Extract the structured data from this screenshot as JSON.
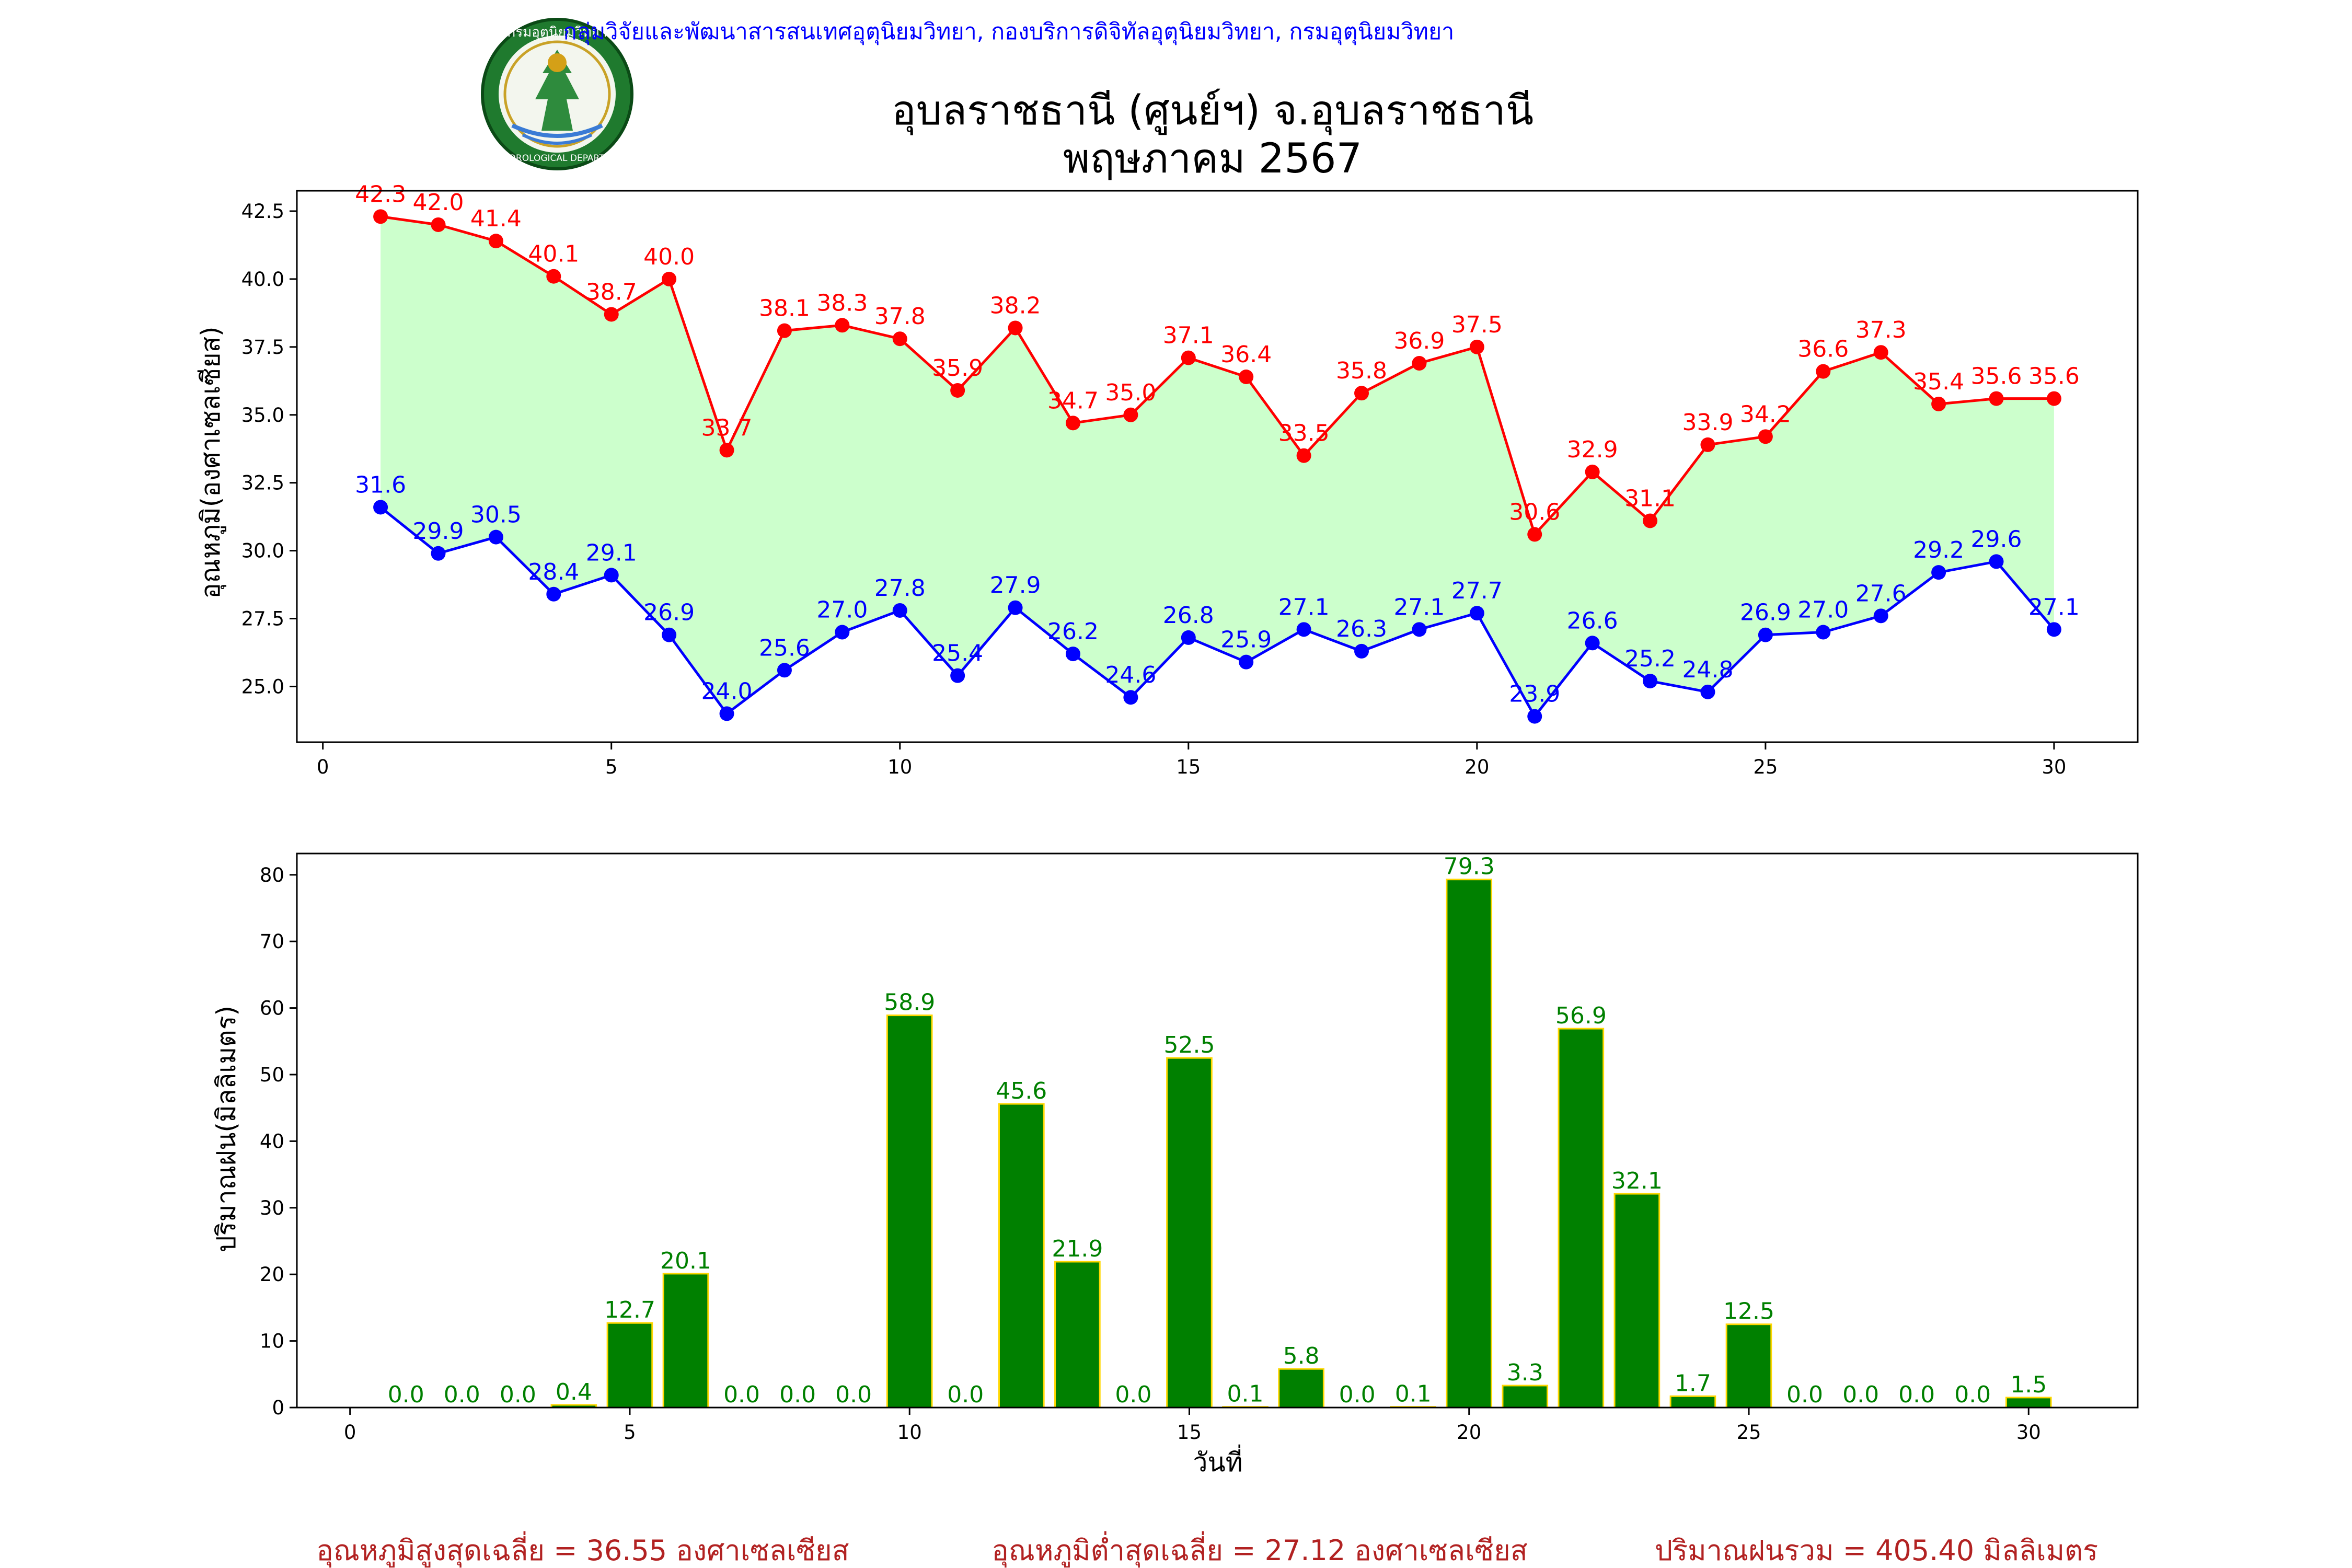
{
  "header": {
    "credit": "กลุ่มวิจัยและพัฒนาสารสนเทศอุตุนิยมวิทยา, กองบริการดิจิทัลอุตุนิยมวิทยา, กรมอุตุนิยมวิทยา",
    "title_line1": "อุบลราชธานี (ศูนย์ฯ) จ.อุบลราชธานี",
    "title_line2": "พฤษภาคม 2567",
    "logo_text": "กรมอุตุนิยมวิทยา",
    "logo_subtext": "METEOROLOGICAL DEPARTMENT"
  },
  "colors": {
    "max_temp": "#ff0000",
    "min_temp": "#0000ff",
    "temp_fill": "#ccffcc",
    "rain_bar": "#008000",
    "rain_edge": "#ffd700",
    "footer": "#b22222",
    "credit": "#0000ff"
  },
  "chart_data": [
    {
      "type": "line",
      "ylabel": "อุณหภูมิ(องศาเซลเซียส)",
      "xlabel": "",
      "x": [
        1,
        2,
        3,
        4,
        5,
        6,
        7,
        8,
        9,
        10,
        11,
        12,
        13,
        14,
        15,
        16,
        17,
        18,
        19,
        20,
        21,
        22,
        23,
        24,
        25,
        26,
        27,
        28,
        29,
        30
      ],
      "xlim": [
        -0.45,
        31.45
      ],
      "ylim": [
        22.95,
        43.25
      ],
      "xticks": [
        0,
        5,
        10,
        15,
        20,
        25,
        30
      ],
      "yticks": [
        25.0,
        27.5,
        30.0,
        32.5,
        35.0,
        37.5,
        40.0,
        42.5
      ],
      "fill_between": true,
      "series": [
        {
          "key": "max",
          "values": [
            42.3,
            42.0,
            41.4,
            40.1,
            38.7,
            40.0,
            33.7,
            38.1,
            38.3,
            37.8,
            35.9,
            38.2,
            34.7,
            35.0,
            37.1,
            36.4,
            33.5,
            35.8,
            36.9,
            37.5,
            30.6,
            32.9,
            31.1,
            33.9,
            34.2,
            36.6,
            37.3,
            35.4,
            35.6,
            35.6
          ]
        },
        {
          "key": "min",
          "values": [
            31.6,
            29.9,
            30.5,
            28.4,
            29.1,
            26.9,
            24.0,
            25.6,
            27.0,
            27.8,
            25.4,
            27.9,
            26.2,
            24.6,
            26.8,
            25.9,
            27.1,
            26.3,
            27.1,
            27.7,
            23.9,
            26.6,
            25.2,
            24.8,
            26.9,
            27.0,
            27.6,
            29.2,
            29.6,
            27.1
          ]
        }
      ]
    },
    {
      "type": "bar",
      "ylabel": "ปริมาณฝน(มิลลิเมตร)",
      "xlabel": "วันที่",
      "x": [
        1,
        2,
        3,
        4,
        5,
        6,
        7,
        8,
        9,
        10,
        11,
        12,
        13,
        14,
        15,
        16,
        17,
        18,
        19,
        20,
        21,
        22,
        23,
        24,
        25,
        26,
        27,
        28,
        29,
        30
      ],
      "values": [
        0.0,
        0.0,
        0.0,
        0.4,
        12.7,
        20.1,
        0.0,
        0.0,
        0.0,
        58.9,
        0.0,
        45.6,
        21.9,
        0.0,
        52.5,
        0.1,
        5.8,
        0.0,
        0.1,
        79.3,
        3.3,
        56.9,
        32.1,
        1.7,
        12.5,
        0.0,
        0.0,
        0.0,
        0.0,
        1.5
      ],
      "xlim": [
        -0.95,
        31.95
      ],
      "ylim": [
        0,
        83.2
      ],
      "xticks": [
        0,
        5,
        10,
        15,
        20,
        25,
        30
      ],
      "yticks": [
        0,
        10,
        20,
        30,
        40,
        50,
        60,
        70,
        80
      ]
    }
  ],
  "footer": {
    "avg_max": "อุณหภูมิสูงสุดเฉลี่ย = 36.55 องศาเซลเซียส",
    "avg_min": "อุณหภูมิต่ำสุดเฉลี่ย = 27.12 องศาเซลเซียส",
    "total_rain": "ปริมาณฝนรวม = 405.40 มิลลิเมตร"
  }
}
